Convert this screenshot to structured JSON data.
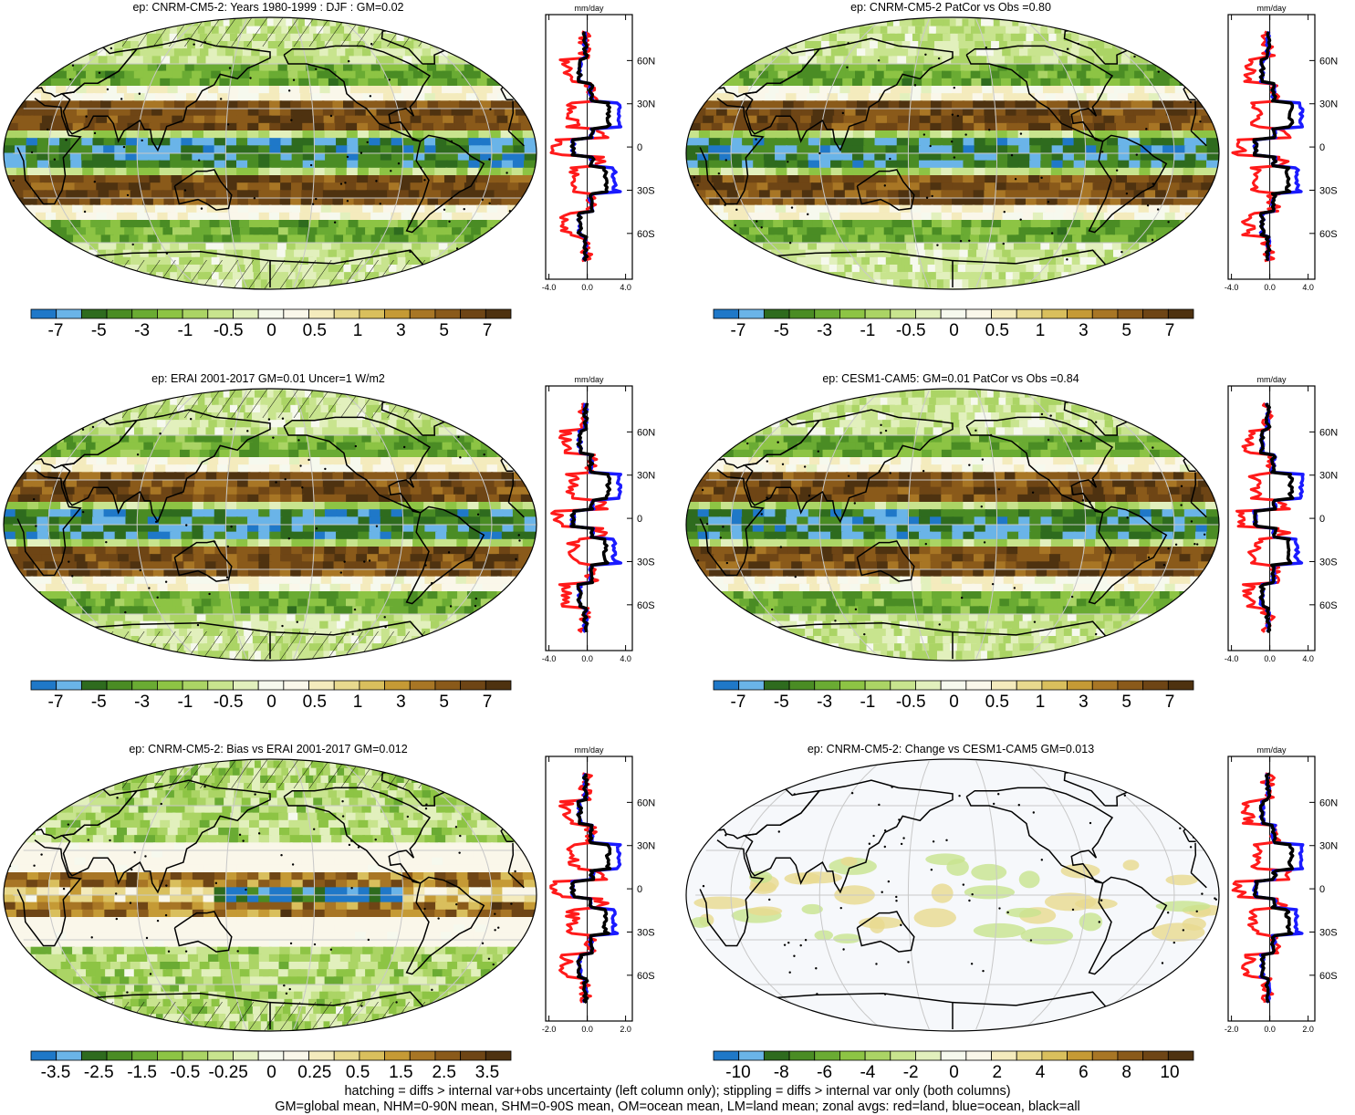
{
  "panels": [
    {
      "title": "ep: CNRM-CM5-2: Years 1980-1999 : DJF : GM=0.02",
      "field": "model",
      "hatching": true,
      "zonal_unit": "mm/day",
      "zonal_xticks": [
        "-4.0",
        "0.0",
        "4.0"
      ],
      "zonal_yticks": [
        "60N",
        "30N",
        "0",
        "30S",
        "60S"
      ],
      "colorbar_labels": [
        "-7",
        "-5",
        "-3",
        "-1",
        "-0.5",
        "0",
        "0.5",
        "1",
        "3",
        "5",
        "7"
      ]
    },
    {
      "title": "ep: CNRM-CM5-2 PatCor vs Obs =0.80",
      "field": "model",
      "hatching": false,
      "zonal_unit": "mm/day",
      "zonal_xticks": [
        "-4.0",
        "0.0",
        "4.0"
      ],
      "zonal_yticks": [
        "60N",
        "30N",
        "0",
        "30S",
        "60S"
      ],
      "colorbar_labels": [
        "-7",
        "-5",
        "-3",
        "-1",
        "-0.5",
        "0",
        "0.5",
        "1",
        "3",
        "5",
        "7"
      ]
    },
    {
      "title": "ep: ERAI 2001-2017 GM=0.01 Uncer=1 W/m2",
      "field": "obs",
      "hatching": true,
      "zonal_unit": "mm/day",
      "zonal_xticks": [
        "-4.0",
        "0.0",
        "4.0"
      ],
      "zonal_yticks": [
        "60N",
        "30N",
        "0",
        "30S",
        "60S"
      ],
      "colorbar_labels": [
        "-7",
        "-5",
        "-3",
        "-1",
        "-0.5",
        "0",
        "0.5",
        "1",
        "3",
        "5",
        "7"
      ]
    },
    {
      "title": "ep: CESM1-CAM5: GM=0.01 PatCor vs Obs =0.84",
      "field": "model2",
      "hatching": false,
      "zonal_unit": "mm/day",
      "zonal_xticks": [
        "-4.0",
        "0.0",
        "4.0"
      ],
      "zonal_yticks": [
        "60N",
        "30N",
        "0",
        "30S",
        "60S"
      ],
      "colorbar_labels": [
        "-7",
        "-5",
        "-3",
        "-1",
        "-0.5",
        "0",
        "0.5",
        "1",
        "3",
        "5",
        "7"
      ]
    },
    {
      "title": "ep: CNRM-CM5-2: Bias vs ERAI 2001-2017 GM=0.012",
      "field": "bias",
      "hatching": true,
      "zonal_unit": "mm/day",
      "zonal_xticks": [
        "-2.0",
        "0.0",
        "2.0"
      ],
      "zonal_yticks": [
        "60N",
        "30N",
        "0",
        "30S",
        "60S"
      ],
      "colorbar_labels": [
        "-3.5",
        "-2.5",
        "-1.5",
        "-0.5",
        "-0.25",
        "0",
        "0.25",
        "0.5",
        "1.5",
        "2.5",
        "3.5"
      ]
    },
    {
      "title": "ep: CNRM-CM5-2: Change vs CESM1-CAM5 GM=0.013",
      "field": "change",
      "hatching": false,
      "zonal_unit": "mm/day",
      "zonal_xticks": [
        "-2.0",
        "0.0",
        "2.0"
      ],
      "zonal_yticks": [
        "60N",
        "30N",
        "0",
        "30S",
        "60S"
      ],
      "colorbar_labels": [
        "-10",
        "-8",
        "-6",
        "-4",
        "-2",
        "0",
        "2",
        "4",
        "6",
        "8",
        "10"
      ]
    }
  ],
  "colorbar_colors": [
    "#1f78c8",
    "#6ab4e8",
    "#2e6b1e",
    "#4a8c24",
    "#6aab33",
    "#8dc444",
    "#abd465",
    "#c8e48e",
    "#e2f0bd",
    "#f6f9ee",
    "#faf7ea",
    "#f4ebbd",
    "#e8d98e",
    "#d9bf5d",
    "#c59a35",
    "#a87625",
    "#8a5a1a",
    "#6e4515",
    "#4e3210"
  ],
  "zonal_colors": {
    "land": "#ff1a1a",
    "ocean": "#1a1aff",
    "all": "#000000"
  },
  "footer": {
    "line1": "hatching = diffs > internal var+obs uncertainty (left column only); stippling = diffs > internal var only (both columns)",
    "line2": "GM=global mean, NHM=0-90N mean, SHM=0-90S mean, OM=ocean mean, LM=land mean; zonal avgs: red=land, blue=ocean, black=all"
  }
}
